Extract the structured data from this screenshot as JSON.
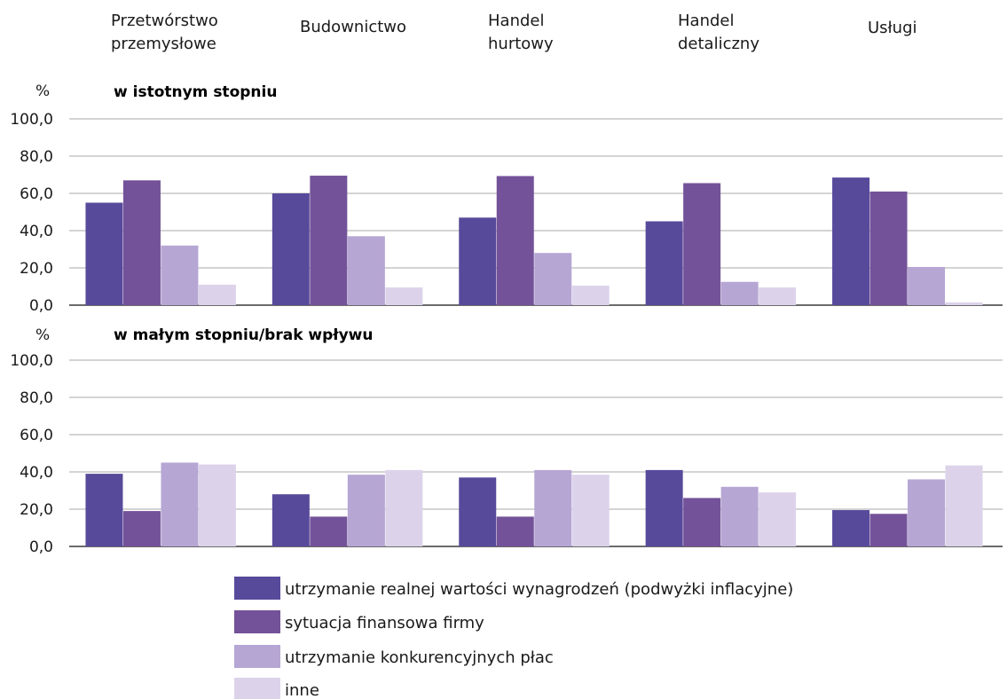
{
  "chart_data": {
    "type": "bar",
    "categories": [
      [
        "Przetwórstwo",
        "przemysłowe"
      ],
      [
        "Budownictwo"
      ],
      [
        "Handel",
        "hurtowy"
      ],
      [
        "Handel",
        "detaliczny"
      ],
      [
        "Usługi"
      ]
    ],
    "unit": "%",
    "ylim": [
      0,
      100
    ],
    "yticks": [
      "0,0",
      "20,0",
      "40,0",
      "60,0",
      "80,0",
      "100,0"
    ],
    "grid": true,
    "legend_position": "bottom",
    "series_names": [
      "utrzymanie realnej wartości wynagrodzeń (podwyżki inflacyjne)",
      "sytuacja finansowa firmy",
      "utrzymanie konkurencyjnych płac",
      "inne"
    ],
    "colors": [
      "#574a9b",
      "#745299",
      "#b6a6d4",
      "#dcd3ea"
    ],
    "panels": [
      {
        "title": "w istotnym stopniu",
        "series": [
          {
            "name": "utrzymanie realnej wartości wynagrodzeń (podwyżki inflacyjne)",
            "values": [
              55.0,
              60.0,
              47.0,
              45.0,
              68.5
            ]
          },
          {
            "name": "sytuacja finansowa firmy",
            "values": [
              67.0,
              69.5,
              69.3,
              65.5,
              61.0
            ]
          },
          {
            "name": "utrzymanie konkurencyjnych płac",
            "values": [
              32.0,
              37.0,
              28.0,
              12.5,
              20.5
            ]
          },
          {
            "name": "inne",
            "values": [
              11.0,
              9.5,
              10.5,
              9.5,
              1.5
            ]
          }
        ]
      },
      {
        "title": "w małym stopniu/brak wpływu",
        "series": [
          {
            "name": "utrzymanie realnej wartości wynagrodzeń (podwyżki inflacyjne)",
            "values": [
              39.0,
              28.0,
              37.0,
              41.0,
              19.5
            ]
          },
          {
            "name": "sytuacja finansowa firmy",
            "values": [
              19.0,
              16.0,
              16.0,
              26.0,
              17.5
            ]
          },
          {
            "name": "utrzymanie konkurencyjnych płac",
            "values": [
              45.0,
              38.5,
              41.0,
              32.0,
              36.0
            ]
          },
          {
            "name": "inne",
            "values": [
              44.0,
              41.0,
              38.5,
              29.0,
              43.5
            ]
          }
        ]
      }
    ]
  }
}
